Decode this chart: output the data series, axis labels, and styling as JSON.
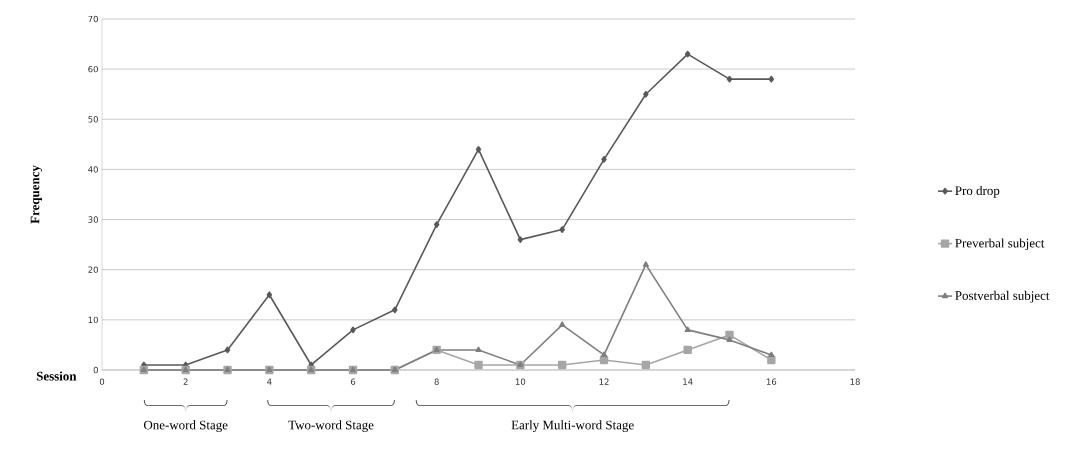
{
  "chart_data": {
    "type": "line",
    "xlabel": "Session",
    "ylabel": "Frequency",
    "x": [
      1,
      2,
      3,
      4,
      5,
      6,
      7,
      8,
      9,
      10,
      11,
      12,
      13,
      14,
      15,
      16
    ],
    "series": [
      {
        "name": "Pro drop",
        "color": "#595959",
        "marker": "diamond",
        "values": [
          1,
          1,
          4,
          15,
          1,
          8,
          12,
          29,
          44,
          26,
          28,
          42,
          55,
          63,
          58,
          58
        ]
      },
      {
        "name": "Preverbal subject",
        "color": "#a6a6a6",
        "marker": "square",
        "values": [
          0,
          0,
          0,
          0,
          0,
          0,
          0,
          4,
          1,
          1,
          1,
          2,
          1,
          4,
          7,
          2
        ]
      },
      {
        "name": "Postverbal subject",
        "color": "#7f7f7f",
        "marker": "triangle",
        "values": [
          0,
          0,
          0,
          0,
          0,
          0,
          0,
          4,
          4,
          1,
          9,
          3,
          21,
          8,
          6,
          3
        ]
      }
    ],
    "annotations": [
      "One-word Stage",
      "Two-word Stage",
      "Early Multi-word Stage"
    ],
    "xlim": [
      0,
      18
    ],
    "ylim": [
      0,
      70
    ],
    "xticks": [
      0,
      2,
      4,
      6,
      8,
      10,
      12,
      14,
      16,
      18
    ],
    "yticks": [
      0,
      10,
      20,
      30,
      40,
      50,
      60,
      70
    ],
    "grid": "y",
    "legend": "right",
    "line_style": "solid"
  }
}
